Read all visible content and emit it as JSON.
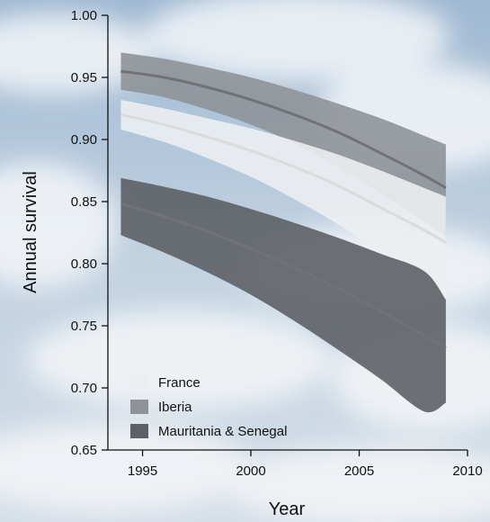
{
  "chart_data": {
    "type": "area",
    "title": "",
    "xlabel": "Year",
    "ylabel": "Annual survival",
    "xlim": [
      1993.4,
      2010
    ],
    "ylim": [
      0.65,
      1.0
    ],
    "xticks": [
      1995,
      2000,
      2005,
      2010
    ],
    "yticks": [
      0.65,
      0.7,
      0.75,
      0.8,
      0.85,
      0.9,
      0.95,
      1.0
    ],
    "grid": false,
    "legend_position": "bottom-left",
    "series": [
      {
        "name": "Iberia",
        "color": "#8f9398",
        "x": [
          1994,
          1996,
          1998,
          2000,
          2002,
          2004,
          2006,
          2008,
          2009
        ],
        "mean": [
          0.955,
          0.95,
          0.942,
          0.932,
          0.92,
          0.906,
          0.889,
          0.871,
          0.861
        ],
        "lower": [
          0.94,
          0.934,
          0.924,
          0.912,
          0.897,
          0.878,
          0.857,
          0.834,
          0.822
        ],
        "upper": [
          0.97,
          0.965,
          0.958,
          0.95,
          0.94,
          0.929,
          0.917,
          0.903,
          0.896
        ]
      },
      {
        "name": "France",
        "color": "#eceef1",
        "x": [
          1994,
          1996,
          1998,
          2000,
          2002,
          2004,
          2006,
          2008,
          2009
        ],
        "mean": [
          0.92,
          0.912,
          0.902,
          0.891,
          0.878,
          0.863,
          0.845,
          0.827,
          0.817
        ],
        "lower": [
          0.908,
          0.898,
          0.885,
          0.87,
          0.852,
          0.832,
          0.809,
          0.784,
          0.771
        ],
        "upper": [
          0.932,
          0.925,
          0.917,
          0.909,
          0.899,
          0.888,
          0.875,
          0.861,
          0.854
        ]
      },
      {
        "name": "Mauritania & Senegal",
        "color": "#5d6166",
        "x": [
          1994,
          1996,
          1998,
          2000,
          2002,
          2004,
          2006,
          2008,
          2009
        ],
        "mean": [
          0.848,
          0.838,
          0.826,
          0.812,
          0.797,
          0.78,
          0.762,
          0.742,
          0.732
        ],
        "lower": [
          0.823,
          0.809,
          0.793,
          0.775,
          0.754,
          0.731,
          0.707,
          0.681,
          0.688
        ],
        "upper": [
          0.869,
          0.862,
          0.854,
          0.844,
          0.833,
          0.821,
          0.808,
          0.794,
          0.771
        ]
      }
    ],
    "legend_order": [
      "France",
      "Iberia",
      "Mauritania & Senegal"
    ]
  }
}
